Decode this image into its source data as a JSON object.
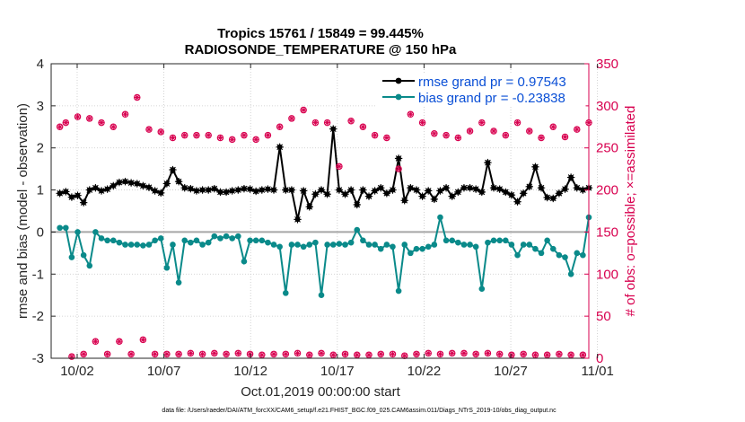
{
  "chart_data": {
    "type": "line",
    "title_line1": "Tropics 15761 / 15849 = 99.445%",
    "title_line2": "RADIOSONDE_TEMPERATURE @ 150 hPa",
    "xlabel": "Oct.01,2019 00:00:00 start",
    "ylabel_left": "rmse and bias (model - observation)",
    "ylabel_right": "# of obs: o=possible; ×=assimilated",
    "footnote": "data file: /Users/raeder/DAI/ATM_forcXX/CAM6_setup/f.e21.FHIST_BGC.f09_025.CAM6assim.011/Diags_NTrS_2019-10/obs_diag_output.nc",
    "ylim_left": [
      -3,
      4
    ],
    "ylim_right": [
      0,
      350
    ],
    "xlim_days": [
      0.5,
      31.5
    ],
    "left_ticks": [
      "-3",
      "-2",
      "-1",
      "0",
      "1",
      "2",
      "3",
      "4"
    ],
    "right_ticks": [
      "0",
      "50",
      "100",
      "150",
      "200",
      "250",
      "300",
      "350"
    ],
    "x_tick_days": [
      2,
      7,
      12,
      17,
      22,
      27,
      32
    ],
    "x_tick_labels": [
      "10/02",
      "10/07",
      "10/12",
      "10/17",
      "10/22",
      "10/27",
      "11/01"
    ],
    "series": [
      {
        "name": "rmse grand pr = 0.97543",
        "color": "#000000",
        "marker": "star",
        "axis": "left",
        "values": [
          0.92,
          0.96,
          0.83,
          0.87,
          0.7,
          1.0,
          1.05,
          0.98,
          1.02,
          1.1,
          1.18,
          1.2,
          1.17,
          1.15,
          1.1,
          1.06,
          0.98,
          0.93,
          1.15,
          1.48,
          1.2,
          1.05,
          1.03,
          0.98,
          1.0,
          1.0,
          1.03,
          0.95,
          0.95,
          0.98,
          1.0,
          1.03,
          1.02,
          0.97,
          1.0,
          1.02,
          1.0,
          2.02,
          1.0,
          1.0,
          0.3,
          0.98,
          0.6,
          0.9,
          1.0,
          0.9,
          2.45,
          1.0,
          0.9,
          1.0,
          0.65,
          1.0,
          0.85,
          0.98,
          1.05,
          0.92,
          1.0,
          1.75,
          0.75,
          1.05,
          1.0,
          0.85,
          0.98,
          0.78,
          0.98,
          1.05,
          0.85,
          0.95,
          1.05,
          1.05,
          1.02,
          0.95,
          1.65,
          1.05,
          1.02,
          0.95,
          0.88,
          0.72,
          0.92,
          1.08,
          1.55,
          1.05,
          0.82,
          0.8,
          0.92,
          1.02,
          1.3,
          1.05,
          1.0,
          1.05
        ]
      },
      {
        "name": "bias grand pr = -0.23838",
        "color": "#0a8a8a",
        "marker": "dot",
        "axis": "left",
        "values": [
          0.1,
          0.1,
          -0.6,
          0.0,
          -0.55,
          -0.8,
          0.0,
          -0.15,
          -0.2,
          -0.2,
          -0.25,
          -0.3,
          -0.3,
          -0.3,
          -0.32,
          -0.3,
          -0.2,
          -0.15,
          -0.85,
          -0.3,
          -1.2,
          -0.2,
          -0.25,
          -0.2,
          -0.3,
          -0.25,
          -0.1,
          -0.15,
          -0.1,
          -0.15,
          -0.1,
          -0.7,
          -0.2,
          -0.2,
          -0.2,
          -0.25,
          -0.3,
          -0.35,
          -1.45,
          -0.3,
          -0.3,
          -0.35,
          -0.3,
          -0.25,
          -1.5,
          -0.3,
          -0.3,
          -0.28,
          -0.3,
          -0.25,
          0.05,
          -0.2,
          -0.3,
          -0.3,
          -0.4,
          -0.3,
          -0.35,
          -1.4,
          -0.3,
          -0.5,
          -0.4,
          -0.4,
          -0.35,
          -0.3,
          0.35,
          -0.2,
          -0.2,
          -0.25,
          -0.3,
          -0.3,
          -0.35,
          -1.35,
          -0.25,
          -0.2,
          -0.2,
          -0.2,
          -0.3,
          -0.55,
          -0.3,
          -0.3,
          -0.4,
          -0.5,
          -0.2,
          -0.4,
          -0.55,
          -0.6,
          -1.0,
          -0.5,
          -0.55,
          0.35
        ]
      },
      {
        "name": "possible",
        "color": "#d8004f",
        "marker": "circle",
        "axis": "right",
        "values": [
          275,
          280,
          2,
          287,
          5,
          285,
          20,
          280,
          5,
          275,
          20,
          290,
          5,
          310,
          22,
          272,
          5,
          269,
          5,
          262,
          5,
          265,
          6,
          265,
          5,
          265,
          6,
          262,
          5,
          260,
          6,
          265,
          5,
          260,
          4,
          265,
          5,
          275,
          5,
          285,
          6,
          295,
          4,
          280,
          6,
          280,
          4,
          228,
          5,
          282,
          4,
          275,
          4,
          265,
          5,
          262,
          5,
          225,
          3,
          290,
          5,
          280,
          6,
          267,
          5,
          265,
          6,
          262,
          6,
          270,
          5,
          280,
          6,
          270,
          5,
          265,
          4,
          280,
          5,
          270,
          4,
          262,
          4,
          275,
          5,
          263,
          4,
          272,
          4,
          280
        ]
      },
      {
        "name": "assimilated",
        "color": "#d8004f",
        "marker": "x",
        "axis": "right",
        "values": [
          275,
          280,
          2,
          287,
          5,
          285,
          20,
          280,
          5,
          275,
          20,
          290,
          5,
          310,
          22,
          272,
          5,
          269,
          5,
          262,
          5,
          265,
          6,
          265,
          5,
          265,
          6,
          262,
          5,
          260,
          6,
          265,
          5,
          260,
          4,
          265,
          5,
          275,
          5,
          285,
          6,
          295,
          4,
          280,
          6,
          280,
          4,
          228,
          5,
          282,
          4,
          275,
          4,
          265,
          5,
          262,
          5,
          225,
          3,
          290,
          5,
          280,
          6,
          267,
          5,
          265,
          6,
          262,
          6,
          270,
          5,
          280,
          6,
          270,
          5,
          265,
          4,
          280,
          5,
          270,
          4,
          262,
          4,
          275,
          5,
          263,
          4,
          272,
          4,
          280
        ]
      }
    ],
    "legend": [
      "rmse grand pr = 0.97543",
      "bias grand pr = -0.23838"
    ]
  }
}
